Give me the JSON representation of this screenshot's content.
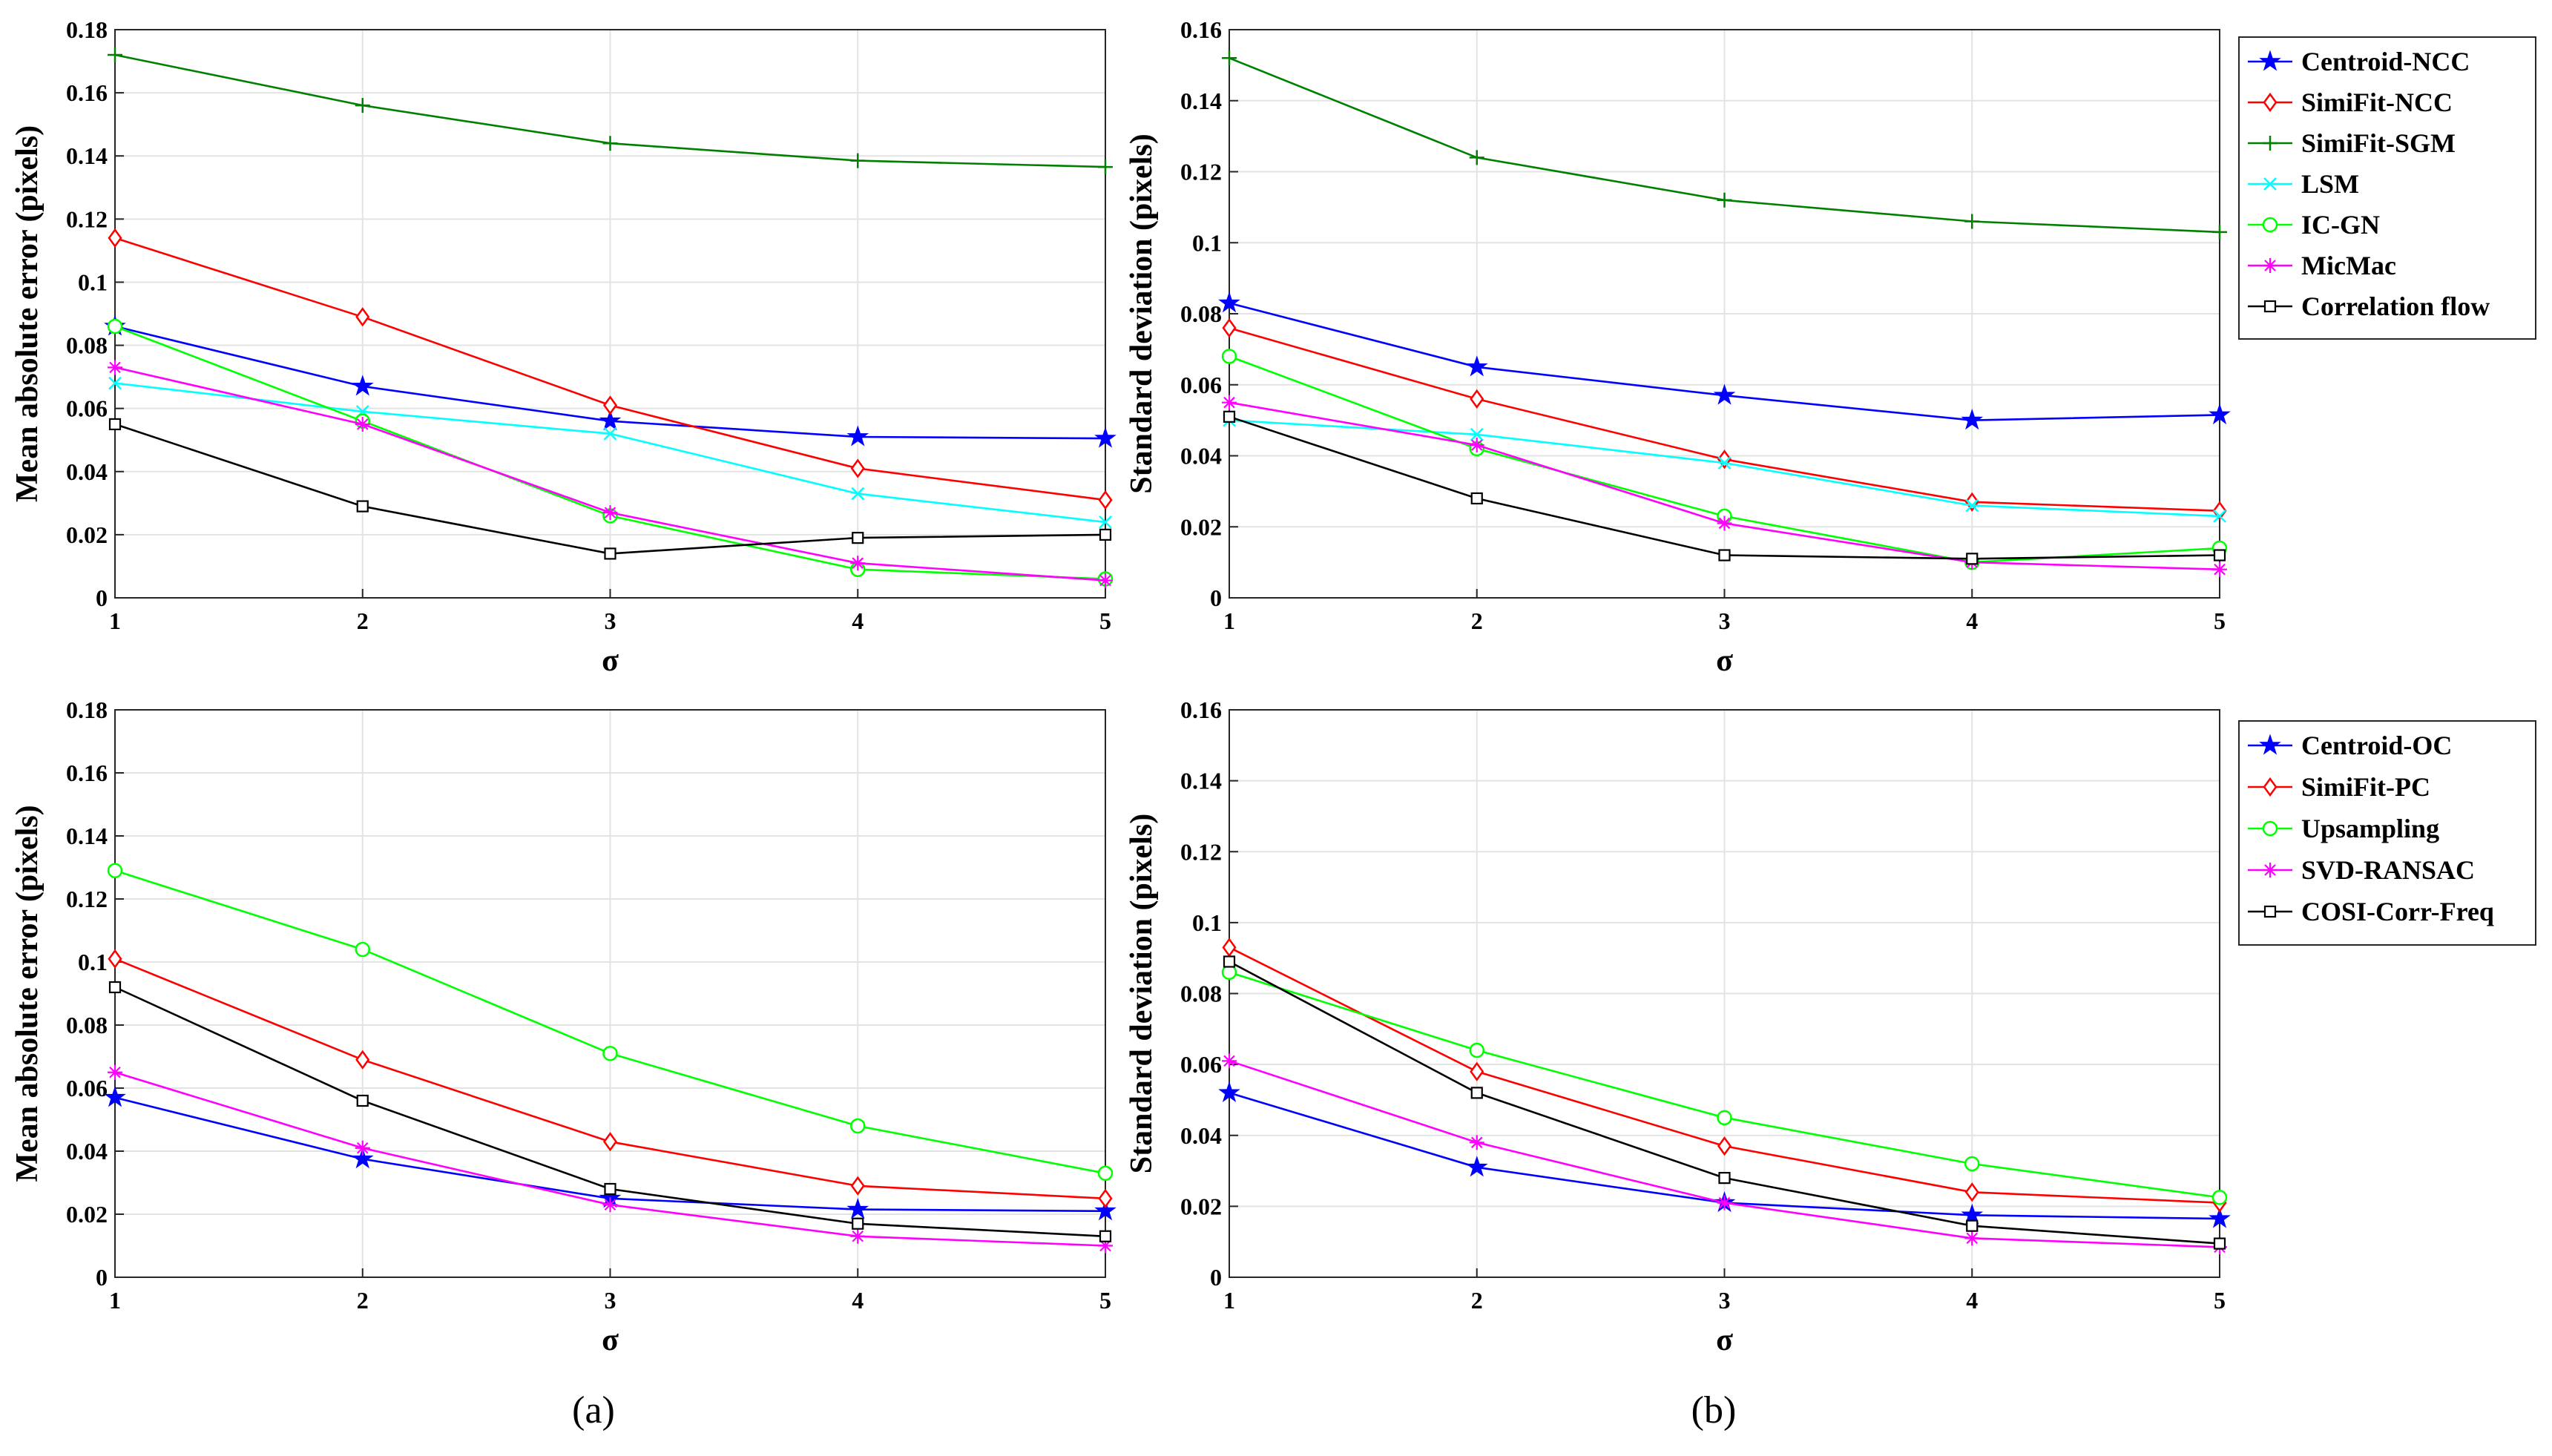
{
  "captions": {
    "left": "(a)",
    "right": "(b)"
  },
  "legend_groups": {
    "top": [
      "Centroid-NCC",
      "SimiFit-NCC",
      "SimiFit-SGM",
      "LSM",
      "IC-GN",
      "MicMac",
      "Correlation flow"
    ],
    "bottom": [
      "Centroid-OC",
      "SimiFit-PC",
      "Upsampling",
      "SVD-RANSAC",
      "COSI-Corr-Freq"
    ]
  },
  "chart_data": [
    {
      "id": "top-left",
      "type": "line",
      "title": "",
      "xlabel": "σ",
      "ylabel": "Mean absolute error (pixels)",
      "x": [
        1,
        2,
        3,
        4,
        5
      ],
      "xlim": [
        1,
        5
      ],
      "ylim": [
        0,
        0.18
      ],
      "xticks": [
        "1",
        "2",
        "3",
        "4",
        "5"
      ],
      "yticks": [
        "0",
        "0.02",
        "0.04",
        "0.06",
        "0.08",
        "0.1",
        "0.12",
        "0.14",
        "0.16",
        "0.18"
      ],
      "grid": true,
      "legend_group": "top",
      "series": [
        {
          "name": "Centroid-NCC",
          "color": "#0000ff",
          "marker": "star",
          "values": [
            0.086,
            0.067,
            0.056,
            0.051,
            0.0505
          ]
        },
        {
          "name": "SimiFit-NCC",
          "color": "#ff0000",
          "marker": "diamond",
          "values": [
            0.114,
            0.089,
            0.061,
            0.041,
            0.031
          ]
        },
        {
          "name": "SimiFit-SGM",
          "color": "#008000",
          "marker": "plus",
          "values": [
            0.172,
            0.156,
            0.144,
            0.1385,
            0.1365
          ]
        },
        {
          "name": "LSM",
          "color": "#00ffff",
          "marker": "x",
          "values": [
            0.068,
            0.059,
            0.052,
            0.033,
            0.024
          ]
        },
        {
          "name": "IC-GN",
          "color": "#00ff00",
          "marker": "circle",
          "values": [
            0.086,
            0.056,
            0.026,
            0.009,
            0.006
          ]
        },
        {
          "name": "MicMac",
          "color": "#ff00ff",
          "marker": "asterisk",
          "values": [
            0.073,
            0.055,
            0.027,
            0.011,
            0.0055
          ]
        },
        {
          "name": "Correlation flow",
          "color": "#000000",
          "marker": "square",
          "values": [
            0.055,
            0.029,
            0.014,
            0.019,
            0.02
          ]
        }
      ]
    },
    {
      "id": "top-right",
      "type": "line",
      "title": "",
      "xlabel": "σ",
      "ylabel": "Standard deviation (pixels)",
      "x": [
        1,
        2,
        3,
        4,
        5
      ],
      "xlim": [
        1,
        5
      ],
      "ylim": [
        0,
        0.16
      ],
      "xticks": [
        "1",
        "2",
        "3",
        "4",
        "5"
      ],
      "yticks": [
        "0",
        "0.02",
        "0.04",
        "0.06",
        "0.08",
        "0.1",
        "0.12",
        "0.14",
        "0.16"
      ],
      "grid": true,
      "legend_group": "top",
      "legend_position": "outside-right",
      "series": [
        {
          "name": "Centroid-NCC",
          "color": "#0000ff",
          "marker": "star",
          "values": [
            0.083,
            0.065,
            0.057,
            0.05,
            0.0515
          ]
        },
        {
          "name": "SimiFit-NCC",
          "color": "#ff0000",
          "marker": "diamond",
          "values": [
            0.076,
            0.056,
            0.039,
            0.027,
            0.0245
          ]
        },
        {
          "name": "SimiFit-SGM",
          "color": "#008000",
          "marker": "plus",
          "values": [
            0.152,
            0.124,
            0.112,
            0.106,
            0.103
          ]
        },
        {
          "name": "LSM",
          "color": "#00ffff",
          "marker": "x",
          "values": [
            0.05,
            0.046,
            0.038,
            0.026,
            0.023
          ]
        },
        {
          "name": "IC-GN",
          "color": "#00ff00",
          "marker": "circle",
          "values": [
            0.068,
            0.042,
            0.023,
            0.01,
            0.014
          ]
        },
        {
          "name": "MicMac",
          "color": "#ff00ff",
          "marker": "asterisk",
          "values": [
            0.055,
            0.043,
            0.021,
            0.01,
            0.008
          ]
        },
        {
          "name": "Correlation flow",
          "color": "#000000",
          "marker": "square",
          "values": [
            0.051,
            0.028,
            0.012,
            0.011,
            0.012
          ]
        }
      ]
    },
    {
      "id": "bottom-left",
      "type": "line",
      "title": "",
      "xlabel": "σ",
      "ylabel": "Mean absolute error (pixels)",
      "x": [
        1,
        2,
        3,
        4,
        5
      ],
      "xlim": [
        1,
        5
      ],
      "ylim": [
        0,
        0.18
      ],
      "xticks": [
        "1",
        "2",
        "3",
        "4",
        "5"
      ],
      "yticks": [
        "0",
        "0.02",
        "0.04",
        "0.06",
        "0.08",
        "0.1",
        "0.12",
        "0.14",
        "0.16",
        "0.18"
      ],
      "grid": true,
      "legend_group": "bottom",
      "series": [
        {
          "name": "Centroid-OC",
          "color": "#0000ff",
          "marker": "star",
          "values": [
            0.057,
            0.0375,
            0.025,
            0.0215,
            0.021
          ]
        },
        {
          "name": "SimiFit-PC",
          "color": "#ff0000",
          "marker": "diamond",
          "values": [
            0.101,
            0.069,
            0.043,
            0.029,
            0.025
          ]
        },
        {
          "name": "Upsampling",
          "color": "#00ff00",
          "marker": "circle",
          "values": [
            0.129,
            0.104,
            0.071,
            0.048,
            0.033
          ]
        },
        {
          "name": "SVD-RANSAC",
          "color": "#ff00ff",
          "marker": "asterisk",
          "values": [
            0.065,
            0.041,
            0.023,
            0.013,
            0.01
          ]
        },
        {
          "name": "COSI-Corr-Freq",
          "color": "#000000",
          "marker": "square",
          "values": [
            0.092,
            0.056,
            0.028,
            0.017,
            0.013
          ]
        }
      ]
    },
    {
      "id": "bottom-right",
      "type": "line",
      "title": "",
      "xlabel": "σ",
      "ylabel": "Standard deviation (pixels)",
      "x": [
        1,
        2,
        3,
        4,
        5
      ],
      "xlim": [
        1,
        5
      ],
      "ylim": [
        0,
        0.16
      ],
      "xticks": [
        "1",
        "2",
        "3",
        "4",
        "5"
      ],
      "yticks": [
        "0",
        "0.02",
        "0.04",
        "0.06",
        "0.08",
        "0.1",
        "0.12",
        "0.14",
        "0.16"
      ],
      "grid": true,
      "legend_group": "bottom",
      "legend_position": "outside-right",
      "series": [
        {
          "name": "Centroid-OC",
          "color": "#0000ff",
          "marker": "star",
          "values": [
            0.052,
            0.031,
            0.021,
            0.0175,
            0.0165
          ]
        },
        {
          "name": "SimiFit-PC",
          "color": "#ff0000",
          "marker": "diamond",
          "values": [
            0.093,
            0.058,
            0.037,
            0.024,
            0.021
          ]
        },
        {
          "name": "Upsampling",
          "color": "#00ff00",
          "marker": "circle",
          "values": [
            0.086,
            0.064,
            0.045,
            0.032,
            0.0225
          ]
        },
        {
          "name": "SVD-RANSAC",
          "color": "#ff00ff",
          "marker": "asterisk",
          "values": [
            0.061,
            0.038,
            0.021,
            0.011,
            0.0085
          ]
        },
        {
          "name": "COSI-Corr-Freq",
          "color": "#000000",
          "marker": "square",
          "values": [
            0.089,
            0.052,
            0.028,
            0.0145,
            0.0095
          ]
        }
      ]
    }
  ]
}
